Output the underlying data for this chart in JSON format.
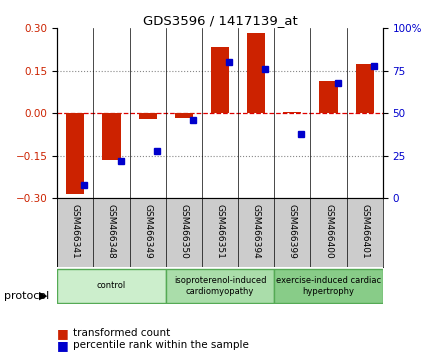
{
  "title": "GDS3596 / 1417139_at",
  "samples": [
    "GSM466341",
    "GSM466348",
    "GSM466349",
    "GSM466350",
    "GSM466351",
    "GSM466394",
    "GSM466399",
    "GSM466400",
    "GSM466401"
  ],
  "transformed_count": [
    -0.285,
    -0.165,
    -0.02,
    -0.015,
    0.235,
    0.285,
    0.005,
    0.115,
    0.175
  ],
  "percentile_rank": [
    8,
    22,
    28,
    46,
    80,
    76,
    38,
    68,
    78
  ],
  "bar_color": "#cc2200",
  "dot_color": "#0000cc",
  "ylim_left": [
    -0.3,
    0.3
  ],
  "ylim_right": [
    0,
    100
  ],
  "yticks_left": [
    -0.3,
    -0.15,
    0.0,
    0.15,
    0.3
  ],
  "yticks_right": [
    0,
    25,
    50,
    75,
    100
  ],
  "groups": [
    {
      "label": "control",
      "start": 0,
      "end": 3,
      "color": "#cceecc"
    },
    {
      "label": "isoproterenol-induced\ncardiomyopathy",
      "start": 3,
      "end": 6,
      "color": "#aaddaa"
    },
    {
      "label": "exercise-induced cardiac\nhypertrophy",
      "start": 6,
      "end": 9,
      "color": "#88cc88"
    }
  ],
  "protocol_label": "protocol",
  "legend_bar_label": "transformed count",
  "legend_dot_label": "percentile rank within the sample",
  "grid_dotted_color": "#888888",
  "zero_line_color": "#dd0000",
  "plot_bg_color": "#ffffff",
  "label_bg_color": "#cccccc",
  "bar_width": 0.5
}
